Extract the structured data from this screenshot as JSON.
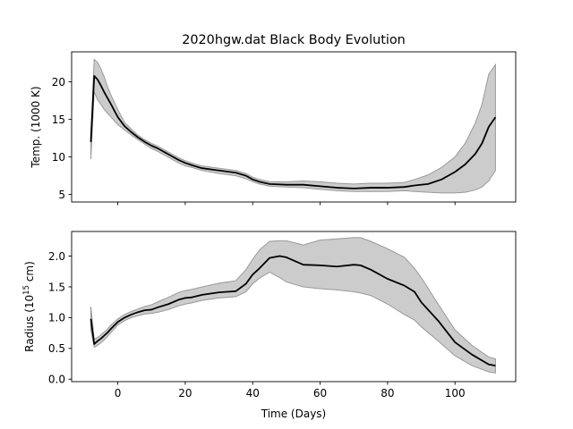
{
  "chart_data": {
    "type": "line",
    "title": "2020hgw.dat Black Body Evolution",
    "xlabel": "Time (Days)",
    "xlim": [
      -13.7,
      118.0
    ],
    "x_ticks": [
      "0",
      "20",
      "40",
      "60",
      "80",
      "100"
    ],
    "x_tick_values": [
      0,
      20,
      40,
      60,
      80,
      100
    ],
    "panels": [
      {
        "id": "temperature",
        "ylabel": "Temp. (1000 K)",
        "ylim": [
          4.0,
          24.0
        ],
        "y_ticks": [
          "5",
          "10",
          "15",
          "20"
        ],
        "y_tick_values": [
          5,
          10,
          15,
          20
        ],
        "show_x_tick_labels": false,
        "x": [
          -8,
          -7,
          -6,
          -5,
          -4,
          -3,
          -2,
          0,
          2,
          4,
          6,
          8,
          10,
          12,
          14,
          16,
          18,
          20,
          22,
          25,
          30,
          35,
          38,
          40,
          42,
          45,
          50,
          55,
          60,
          65,
          70,
          75,
          80,
          85,
          88,
          92,
          96,
          100,
          103,
          106,
          108,
          110,
          112
        ],
        "value": [
          12.0,
          20.8,
          20.3,
          19.5,
          18.6,
          17.8,
          17.0,
          15.3,
          14.1,
          13.3,
          12.6,
          12.0,
          11.5,
          11.1,
          10.6,
          10.1,
          9.6,
          9.2,
          8.9,
          8.5,
          8.2,
          7.9,
          7.5,
          7.0,
          6.7,
          6.4,
          6.3,
          6.3,
          6.1,
          5.9,
          5.8,
          5.9,
          5.9,
          6.0,
          6.2,
          6.4,
          7.0,
          8.0,
          9.0,
          10.4,
          11.8,
          14.0,
          15.3
        ],
        "upper": [
          13.0,
          23.0,
          22.6,
          21.7,
          20.6,
          19.3,
          18.2,
          16.3,
          14.6,
          13.7,
          12.9,
          12.3,
          11.8,
          11.4,
          10.9,
          10.4,
          9.9,
          9.5,
          9.2,
          8.8,
          8.5,
          8.2,
          7.8,
          7.3,
          7.0,
          6.7,
          6.7,
          6.8,
          6.7,
          6.5,
          6.4,
          6.5,
          6.5,
          6.6,
          7.0,
          7.6,
          8.6,
          10.0,
          11.8,
          14.5,
          17.0,
          21.0,
          22.3
        ],
        "lower": [
          9.7,
          18.7,
          17.6,
          17.0,
          16.3,
          15.8,
          15.3,
          14.3,
          13.6,
          12.9,
          12.3,
          11.7,
          11.1,
          10.7,
          10.2,
          9.7,
          9.2,
          8.8,
          8.6,
          8.2,
          7.8,
          7.5,
          7.1,
          6.7,
          6.4,
          6.1,
          6.0,
          5.9,
          5.7,
          5.5,
          5.4,
          5.4,
          5.4,
          5.5,
          5.4,
          5.3,
          5.2,
          5.2,
          5.3,
          5.6,
          6.0,
          6.8,
          8.2
        ]
      },
      {
        "id": "radius",
        "ylabel_parts": [
          "Radius (10",
          "15",
          " cm)"
        ],
        "ylim": [
          -0.04,
          2.4
        ],
        "y_ticks": [
          "0.0",
          "0.5",
          "1.0",
          "1.5",
          "2.0"
        ],
        "y_tick_values": [
          0.0,
          0.5,
          1.0,
          1.5,
          2.0
        ],
        "show_x_tick_labels": true,
        "x": [
          -8,
          -7,
          -6,
          -5,
          -4,
          -3,
          -2,
          0,
          2,
          4,
          6,
          8,
          10,
          12,
          15,
          18,
          20,
          22,
          25,
          30,
          35,
          38,
          40,
          42,
          45,
          48,
          50,
          55,
          60,
          65,
          70,
          72,
          75,
          80,
          85,
          88,
          90,
          95,
          100,
          105,
          110,
          112
        ],
        "value": [
          0.98,
          0.57,
          0.62,
          0.66,
          0.71,
          0.76,
          0.82,
          0.93,
          1.0,
          1.05,
          1.09,
          1.12,
          1.13,
          1.17,
          1.22,
          1.29,
          1.32,
          1.33,
          1.37,
          1.41,
          1.43,
          1.55,
          1.7,
          1.8,
          1.97,
          2.0,
          1.98,
          1.86,
          1.85,
          1.83,
          1.86,
          1.85,
          1.78,
          1.63,
          1.52,
          1.42,
          1.25,
          0.95,
          0.6,
          0.4,
          0.24,
          0.22
        ],
        "upper": [
          1.18,
          0.65,
          0.68,
          0.72,
          0.77,
          0.82,
          0.88,
          0.98,
          1.05,
          1.1,
          1.14,
          1.18,
          1.21,
          1.26,
          1.33,
          1.41,
          1.44,
          1.46,
          1.5,
          1.56,
          1.6,
          1.78,
          1.95,
          2.1,
          2.24,
          2.25,
          2.25,
          2.18,
          2.26,
          2.28,
          2.3,
          2.3,
          2.24,
          2.12,
          1.98,
          1.8,
          1.65,
          1.22,
          0.8,
          0.55,
          0.36,
          0.33
        ],
        "lower": [
          0.8,
          0.52,
          0.55,
          0.59,
          0.64,
          0.7,
          0.76,
          0.88,
          0.95,
          1.0,
          1.03,
          1.06,
          1.07,
          1.09,
          1.13,
          1.19,
          1.22,
          1.24,
          1.28,
          1.32,
          1.34,
          1.42,
          1.55,
          1.64,
          1.74,
          1.65,
          1.58,
          1.5,
          1.47,
          1.45,
          1.42,
          1.4,
          1.36,
          1.22,
          1.05,
          0.96,
          0.85,
          0.62,
          0.38,
          0.22,
          0.12,
          0.1
        ]
      }
    ],
    "colors": {
      "band_fill": "#cccccc",
      "band_edge": "#999999",
      "line": "#000000"
    },
    "grid": false,
    "legend": "none"
  }
}
